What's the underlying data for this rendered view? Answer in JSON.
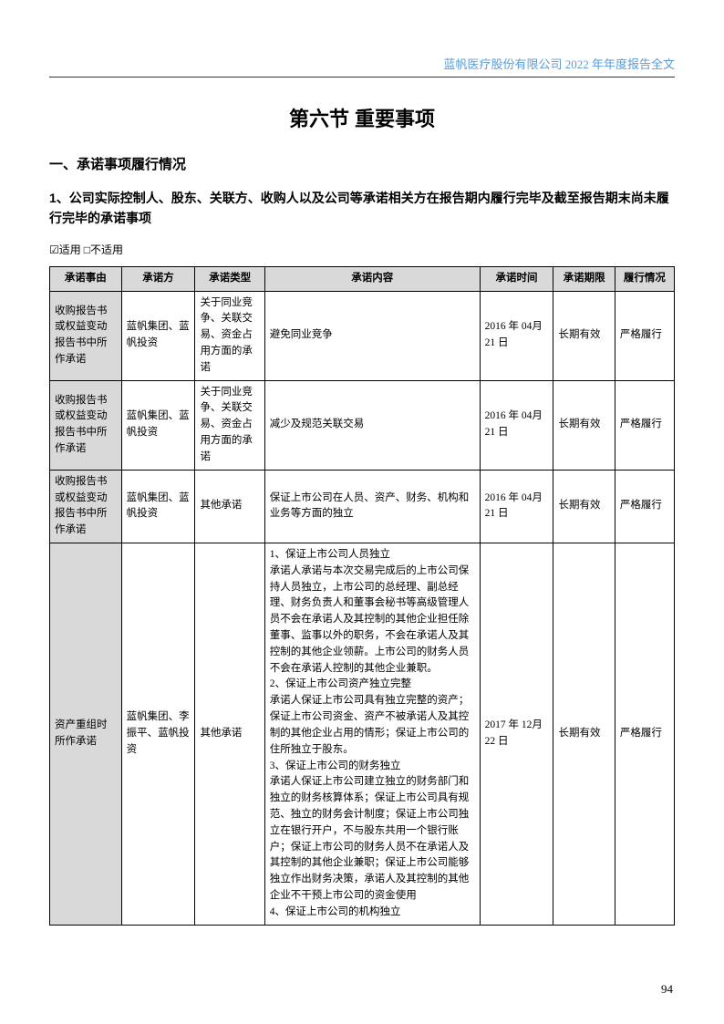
{
  "header": {
    "text": "蓝帆医疗股份有限公司 2022 年年度报告全文"
  },
  "section_title": "第六节 重要事项",
  "heading1": "一、承诺事项履行情况",
  "heading2": "1、公司实际控制人、股东、关联方、收购人以及公司等承诺相关方在报告期内履行完毕及截至报告期末尚未履行完毕的承诺事项",
  "checkbox_line": "☑适用 □不适用",
  "table": {
    "columns": [
      "承诺事由",
      "承诺方",
      "承诺类型",
      "承诺内容",
      "承诺时间",
      "承诺期限",
      "履行情况"
    ],
    "rows": [
      {
        "reason": "收购报告书或权益变动报告书中所作承诺",
        "party": "蓝帆集团、蓝帆投资",
        "type": "关于同业竞争、关联交易、资金占用方面的承诺",
        "content": "避免同业竞争",
        "time": "2016 年 04月 21 日",
        "deadline": "长期有效",
        "status": "严格履行"
      },
      {
        "reason": "收购报告书或权益变动报告书中所作承诺",
        "party": "蓝帆集团、蓝帆投资",
        "type": "关于同业竞争、关联交易、资金占用方面的承诺",
        "content": "减少及规范关联交易",
        "time": "2016 年 04月 21 日",
        "deadline": "长期有效",
        "status": "严格履行"
      },
      {
        "reason": "收购报告书或权益变动报告书中所作承诺",
        "party": "蓝帆集团、蓝帆投资",
        "type": "其他承诺",
        "content": "保证上市公司在人员、资产、财务、机构和业务等方面的独立",
        "time": "2016 年 04月 21 日",
        "deadline": "长期有效",
        "status": "严格履行"
      },
      {
        "reason": "资产重组时所作承诺",
        "party": "蓝帆集团、李振平、蓝帆投资",
        "type": "其他承诺",
        "content": "1、保证上市公司人员独立\n承诺人承诺与本次交易完成后的上市公司保持人员独立，上市公司的总经理、副总经理、财务负责人和董事会秘书等高级管理人员不会在承诺人及其控制的其他企业担任除董事、监事以外的职务，不会在承诺人及其控制的其他企业领薪。上市公司的财务人员不会在承诺人控制的其他企业兼职。\n2、保证上市公司资产独立完整\n承诺人保证上市公司具有独立完整的资产；保证上市公司资金、资产不被承诺人及其控制的其他企业占用的情形；保证上市公司的住所独立于股东。\n3、保证上市公司的财务独立\n承诺人保证上市公司建立独立的财务部门和独立的财务核算体系；保证上市公司具有规范、独立的财务会计制度；保证上市公司独立在银行开户，不与股东共用一个银行账户；保证上市公司的财务人员不在承诺人及其控制的其他企业兼职；保证上市公司能够独立作出财务决策，承诺人及其控制的其他企业不干预上市公司的资金使用\n4、保证上市公司的机构独立",
        "time": "2017 年 12月 22 日",
        "deadline": "长期有效",
        "status": "严格履行"
      }
    ]
  },
  "page_number": "94",
  "colors": {
    "header_text": "#5b9bd5",
    "table_header_bg": "#d9d9d9",
    "border": "#000000",
    "text": "#000000",
    "background": "#ffffff"
  }
}
